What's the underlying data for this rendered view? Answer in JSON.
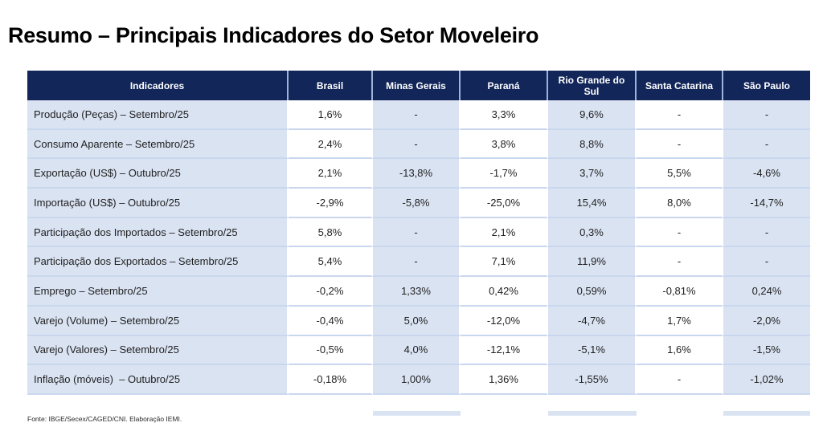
{
  "title": {
    "prefix": "Resumo – ",
    "emphasis": "Principais Indicadores do Setor Moveleiro"
  },
  "table": {
    "columns": [
      "Indicadores",
      "Brasil",
      "Minas Gerais",
      "Paraná",
      "Rio Grande do Sul",
      "Santa Catarina",
      "São Paulo"
    ],
    "rows": [
      {
        "label": "Produção (Peças) – Setembro/25",
        "values": [
          "1,6%",
          "-",
          "3,3%",
          "9,6%",
          "-",
          "-"
        ]
      },
      {
        "label": "Consumo Aparente – Setembro/25",
        "values": [
          "2,4%",
          "-",
          "3,8%",
          "8,8%",
          "-",
          "-"
        ]
      },
      {
        "label": "Exportação (US$) – Outubro/25",
        "values": [
          "2,1%",
          "-13,8%",
          "-1,7%",
          "3,7%",
          "5,5%",
          "-4,6%"
        ]
      },
      {
        "label": "Importação (US$) – Outubro/25",
        "values": [
          "-2,9%",
          "-5,8%",
          "-25,0%",
          "15,4%",
          "8,0%",
          "-14,7%"
        ]
      },
      {
        "label": "Participação dos Importados – Setembro/25",
        "values": [
          "5,8%",
          "-",
          "2,1%",
          "0,3%",
          "-",
          "-"
        ]
      },
      {
        "label": "Participação dos Exportados – Setembro/25",
        "values": [
          "5,4%",
          "-",
          "7,1%",
          "11,9%",
          "-",
          "-"
        ]
      },
      {
        "label": "Emprego – Setembro/25",
        "values": [
          "-0,2%",
          "1,33%",
          "0,42%",
          "0,59%",
          "-0,81%",
          "0,24%"
        ]
      },
      {
        "label": "Varejo (Volume) – Setembro/25",
        "values": [
          "-0,4%",
          "5,0%",
          "-12,0%",
          "-4,7%",
          "1,7%",
          "-2,0%"
        ]
      },
      {
        "label": "Varejo (Valores) – Setembro/25",
        "values": [
          "-0,5%",
          "4,0%",
          "-12,1%",
          "-5,1%",
          "1,6%",
          "-1,5%"
        ]
      },
      {
        "label": "Inflação (móveis)  – Outubro/25",
        "values": [
          "-0,18%",
          "1,00%",
          "1,36%",
          "-1,55%",
          "-",
          "-1,02%"
        ]
      }
    ]
  },
  "footer": {
    "source": "Fonte: IBGE/Secex/CAGED/CNI. Elaboração IEMI."
  },
  "colors": {
    "header_bg": "#12265A",
    "header_text": "#FFFFFF",
    "band": "#DAE3F2",
    "row_border": "#C9D7EE",
    "header_divider": "#9FB3D8"
  }
}
